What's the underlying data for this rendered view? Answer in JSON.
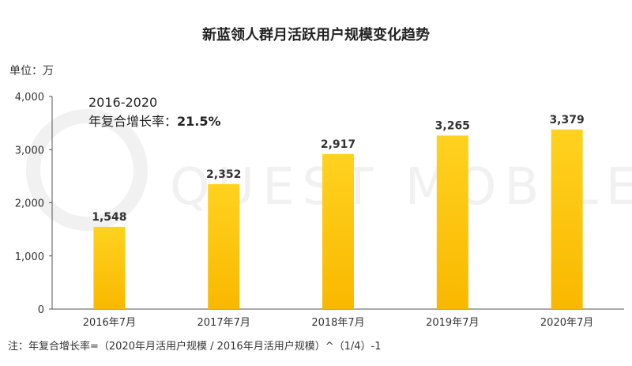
{
  "chart_data": {
    "type": "bar",
    "title": "新蓝领人群月活跃用户规模变化趋势",
    "unit_label": "单位：万",
    "categories": [
      "2016年7月",
      "2017年7月",
      "2018年7月",
      "2019年7月",
      "2020年7月"
    ],
    "values": [
      1548,
      2352,
      2917,
      3265,
      3379
    ],
    "value_labels": [
      "1,548",
      "2,352",
      "2,917",
      "3,265",
      "3,379"
    ],
    "ylim": [
      0,
      4000
    ],
    "yticks": [
      0,
      1000,
      2000,
      3000,
      4000
    ],
    "ytick_labels": [
      "0",
      "1,000",
      "2,000",
      "3,000",
      "4,000"
    ],
    "annotation": {
      "line1": "2016-2020",
      "line2_prefix": "年复合增长率：",
      "line2_value": "21.5%"
    },
    "footnote": "注：年复合增长率=（2020年月活用户规模 / 2016年月活用户规模）^（1/4）-1",
    "watermark": "QUEST MOBILE",
    "grid": false,
    "legend": "none",
    "colors": {
      "bar_top": "#FFD21F",
      "bar_bottom": "#F9B800",
      "axis": "#555555"
    }
  }
}
